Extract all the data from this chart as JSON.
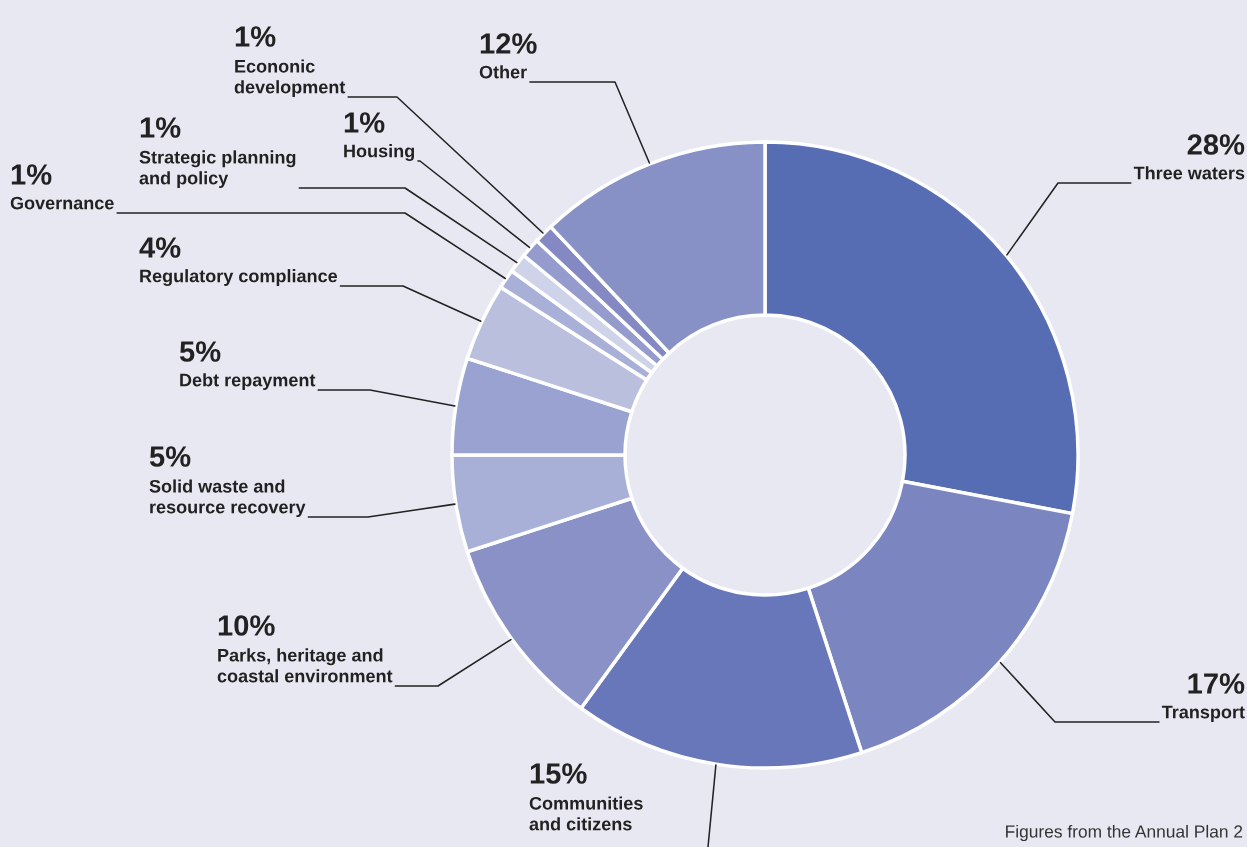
{
  "chart_data": {
    "type": "donut",
    "categories": [
      "Three waters",
      "Transport",
      "Communities\nand citizens",
      "Parks, heritage and\ncoastal environment",
      "Solid waste and\nresource recovery",
      "Debt repayment",
      "Regulatory compliance",
      "Governance",
      "Strategic planning\nand policy",
      "Housing",
      "Econonic\ndevelopment",
      "Other"
    ],
    "values": [
      28,
      17,
      15,
      10,
      5,
      5,
      4,
      1,
      1,
      1,
      1,
      12
    ],
    "value_labels": [
      "28%",
      "17%",
      "15%",
      "10%",
      "5%",
      "5%",
      "4%",
      "1%",
      "1%",
      "1%",
      "1%",
      "12%"
    ],
    "colors": [
      "#566db3",
      "#7b86c1",
      "#6876ba",
      "#8991c7",
      "#a9b0d8",
      "#9aa2d1",
      "#bbbfde",
      "#a9b0d8",
      "#ced3e9",
      "#959ccd",
      "#8489c4",
      "#8891c6"
    ],
    "annotations": [
      "Figures from the Annual Plan 2"
    ]
  }
}
